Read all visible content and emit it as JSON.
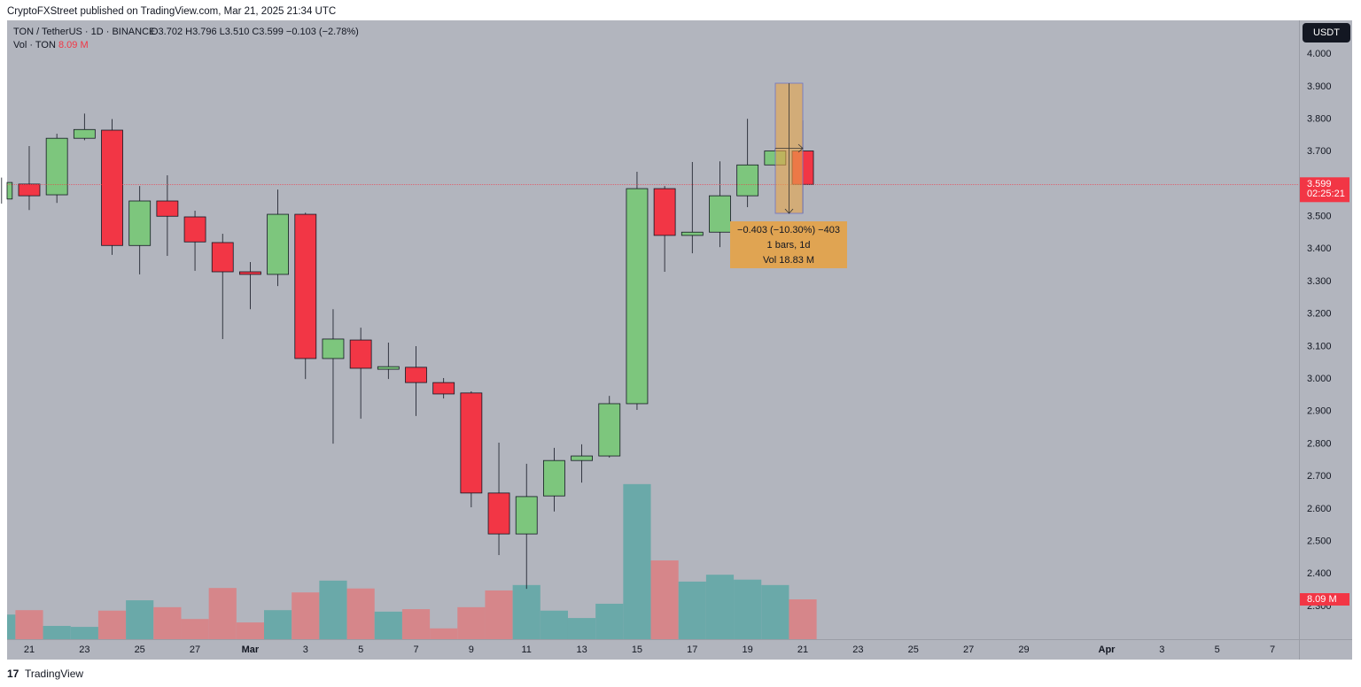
{
  "header": {
    "publisher": "CryptoFXStreet published on TradingView.com, Mar 21, 2025 21:34 UTC",
    "symbol": "TON / TetherUS · 1D · BINANCE",
    "ohlc": "O3.702  H3.796  L3.510  C3.599  −0.103 (−2.78%)",
    "volume_title": "Vol · TON"
  },
  "currency_button": "USDT",
  "countdown": "02:25:21",
  "measure": {
    "line1": "−0.403 (−10.30%) −403",
    "line2": "1 bars, 1d",
    "line3": "Vol 18.83 M"
  },
  "footer": "TradingView",
  "chart_data": {
    "type": "candlestick",
    "categories": [
      null,
      "21",
      null,
      "23",
      null,
      "25",
      null,
      "27",
      null,
      "Mar",
      null,
      "3",
      null,
      "5",
      null,
      "7",
      null,
      "9",
      null,
      "11",
      null,
      "13",
      null,
      "15",
      null,
      "17",
      null,
      "19",
      null,
      "21",
      null,
      "23",
      null,
      "25",
      null,
      "27",
      null,
      "29",
      null,
      null,
      "Apr",
      null,
      "3",
      null,
      "5",
      null,
      "7"
    ],
    "open": [
      3.554,
      3.6,
      3.567,
      3.741,
      3.766,
      3.411,
      3.548,
      3.499,
      3.42,
      3.33,
      3.322,
      3.507,
      3.063,
      3.12,
      3.03,
      3.036,
      2.989,
      2.957,
      2.649,
      2.523,
      2.64,
      2.749,
      2.763,
      2.924,
      3.586,
      3.442,
      3.452,
      3.564,
      3.659,
      3.702,
      null,
      null,
      null,
      null,
      null,
      null,
      null,
      null,
      null,
      null,
      null,
      null,
      null,
      null,
      null,
      null,
      null
    ],
    "high": [
      3.62,
      3.717,
      3.755,
      3.817,
      3.8,
      3.594,
      3.627,
      3.518,
      3.447,
      3.36,
      3.583,
      3.512,
      3.215,
      3.158,
      3.112,
      3.101,
      3.003,
      2.962,
      2.804,
      2.739,
      2.788,
      2.799,
      2.948,
      3.638,
      3.594,
      3.668,
      3.67,
      3.801,
      3.71,
      3.796,
      null,
      null,
      null,
      null,
      null,
      null,
      null,
      null,
      null,
      null,
      null,
      null,
      null,
      null,
      null,
      null,
      null
    ],
    "low": [
      3.54,
      3.52,
      3.542,
      3.735,
      3.382,
      3.322,
      3.379,
      3.333,
      3.123,
      3.215,
      3.286,
      3.0,
      2.801,
      2.878,
      3.0,
      2.886,
      2.94,
      2.605,
      2.458,
      2.354,
      2.592,
      2.681,
      2.758,
      2.905,
      3.33,
      3.387,
      3.406,
      3.529,
      3.655,
      3.51,
      null,
      null,
      null,
      null,
      null,
      null,
      null,
      null,
      null,
      null,
      null,
      null,
      null,
      null,
      null,
      null,
      null
    ],
    "close": [
      3.605,
      3.564,
      3.741,
      3.768,
      3.411,
      3.548,
      3.501,
      3.422,
      3.33,
      3.322,
      3.507,
      3.063,
      3.123,
      3.033,
      3.038,
      2.989,
      2.954,
      2.649,
      2.523,
      2.638,
      2.749,
      2.763,
      2.924,
      3.586,
      3.442,
      3.452,
      3.564,
      3.659,
      3.702,
      3.599,
      null,
      null,
      null,
      null,
      null,
      null,
      null,
      null,
      null,
      null,
      null,
      null,
      null,
      null,
      null,
      null,
      null
    ],
    "volume": [
      5.0,
      5.9,
      2.7,
      2.5,
      5.8,
      7.9,
      6.5,
      4.1,
      10.4,
      3.4,
      5.9,
      9.5,
      11.9,
      10.3,
      5.6,
      6.1,
      2.2,
      6.5,
      9.9,
      11.0,
      5.8,
      4.3,
      7.2,
      31.5,
      16.0,
      11.7,
      13.1,
      12.1,
      11.0,
      8.09,
      null,
      null,
      null,
      null,
      null,
      null,
      null,
      null,
      null,
      null,
      null,
      null,
      null,
      null,
      null,
      null,
      null
    ],
    "volume_label": "8.09 M",
    "up_color": "#7dc67d",
    "down_color": "#f23645",
    "volume_up_color": "#6aa9a9",
    "volume_down_color": "#d6868a",
    "ylim": [
      2.199,
      4.104
    ],
    "yticks": [
      {
        "value": 2.3,
        "label": "2.300"
      },
      {
        "value": 2.4,
        "label": "2.400"
      },
      {
        "value": 2.5,
        "label": "2.500"
      },
      {
        "value": 2.6,
        "label": "2.600"
      },
      {
        "value": 2.7,
        "label": "2.700"
      },
      {
        "value": 2.8,
        "label": "2.800"
      },
      {
        "value": 2.9,
        "label": "2.900"
      },
      {
        "value": 3,
        "label": "3.000"
      },
      {
        "value": 3.1,
        "label": "3.100"
      },
      {
        "value": 3.2,
        "label": "3.200"
      },
      {
        "value": 3.3,
        "label": "3.300"
      },
      {
        "value": 3.4,
        "label": "3.400"
      },
      {
        "value": 3.5,
        "label": "3.500"
      },
      {
        "value": 3.6,
        "label": "3.600"
      },
      {
        "value": 3.7,
        "label": "3.700"
      },
      {
        "value": 3.8,
        "label": "3.800"
      },
      {
        "value": 3.9,
        "label": "3.900"
      },
      {
        "value": 4,
        "label": "4.000"
      }
    ],
    "y2lim": [
      0,
      125.7
    ],
    "grid": false
  }
}
